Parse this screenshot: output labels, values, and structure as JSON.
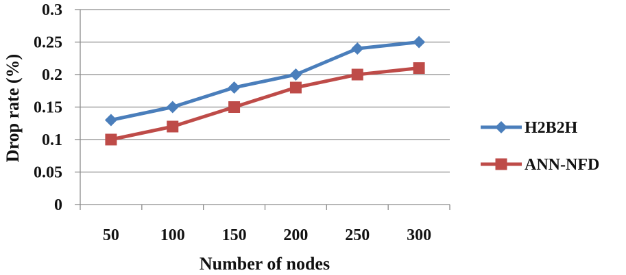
{
  "chart_data": {
    "type": "line",
    "xlabel": "Number of nodes",
    "ylabel": "Drop rate (%)",
    "categories": [
      "50",
      "100",
      "150",
      "200",
      "250",
      "300"
    ],
    "ylim": [
      0,
      0.3
    ],
    "yticks": [
      "0",
      "0.05",
      "0.1",
      "0.15",
      "0.2",
      "0.25",
      "0.3"
    ],
    "grid": "horizontal",
    "legend_position": "right",
    "series": [
      {
        "name": "H2B2H",
        "values": [
          0.13,
          0.15,
          0.18,
          0.2,
          0.24,
          0.25
        ],
        "color": "#4a7ebb",
        "marker": "diamond"
      },
      {
        "name": "ANN-NFD",
        "values": [
          0.1,
          0.12,
          0.15,
          0.18,
          0.2,
          0.21
        ],
        "color": "#be4b48",
        "marker": "square"
      }
    ]
  }
}
